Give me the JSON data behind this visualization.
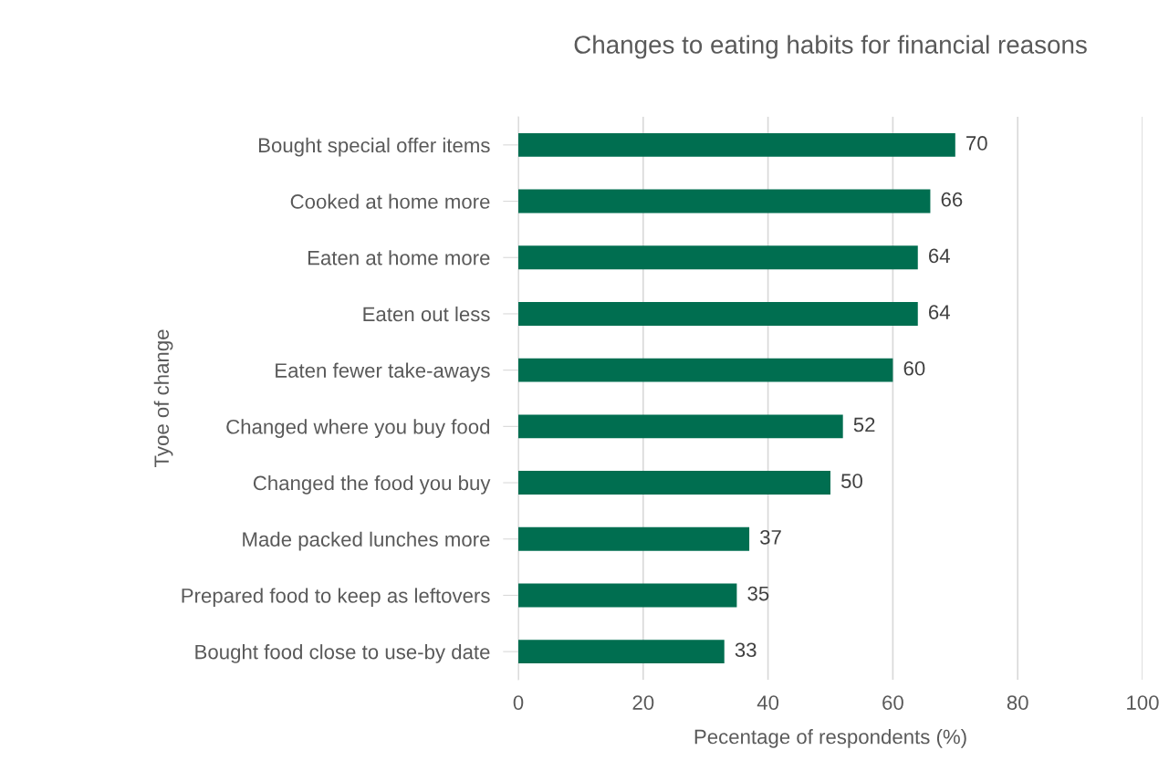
{
  "chart_data": {
    "type": "bar",
    "orientation": "horizontal",
    "title": "Changes to eating habits for financial reasons",
    "xlabel": "Pecentage of respondents (%)",
    "ylabel": "Tyoe of change",
    "categories": [
      "Bought special offer items",
      "Cooked at home more",
      "Eaten at home more",
      "Eaten out less",
      "Eaten fewer take-aways",
      "Changed where you buy food",
      "Changed the food you buy",
      "Made packed lunches more",
      "Prepared food to keep as leftovers",
      "Bought food close to use-by date"
    ],
    "values": [
      70,
      66,
      64,
      64,
      60,
      52,
      50,
      37,
      35,
      33
    ],
    "color": "#006e50",
    "xlim": [
      0,
      100
    ],
    "xticks": [
      0,
      20,
      40,
      60,
      80,
      100
    ],
    "grid": "x",
    "data_labels": true,
    "legend": false
  }
}
